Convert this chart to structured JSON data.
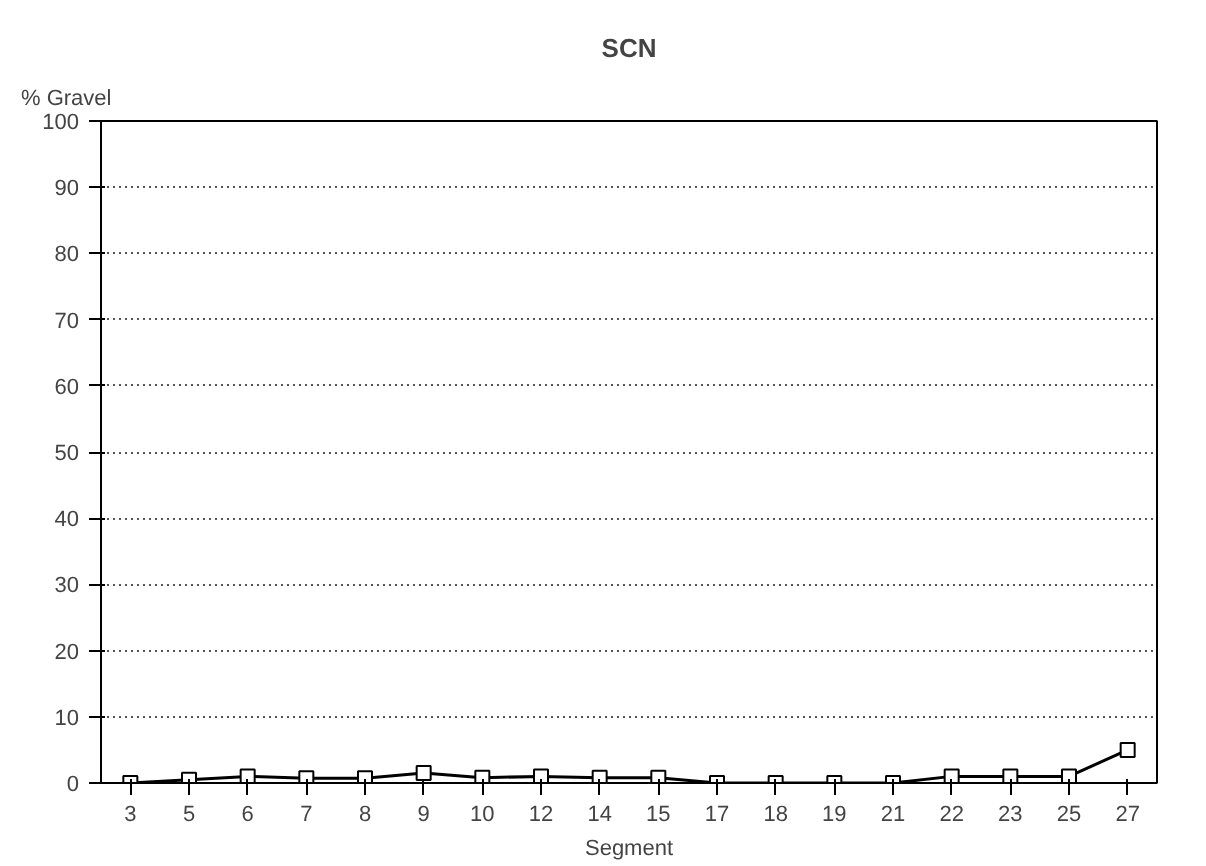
{
  "chart_data": {
    "type": "line",
    "title": "SCN",
    "xlabel": "Segment",
    "ylabel": "% Gravel",
    "categories": [
      "3",
      "5",
      "6",
      "7",
      "8",
      "9",
      "10",
      "12",
      "14",
      "15",
      "17",
      "18",
      "19",
      "21",
      "22",
      "23",
      "25",
      "27"
    ],
    "series": [
      {
        "color": "#000000",
        "values": [
          0,
          0.5,
          1,
          0.7,
          0.7,
          1.5,
          0.8,
          1,
          0.8,
          0.8,
          0,
          0,
          0,
          0,
          1,
          1,
          1,
          5
        ]
      }
    ],
    "ylim": [
      0,
      100
    ],
    "yticks": [
      0,
      10,
      20,
      30,
      40,
      50,
      60,
      70,
      80,
      90,
      100
    ],
    "grid": "y",
    "marker": "square",
    "line_style": "solid"
  }
}
